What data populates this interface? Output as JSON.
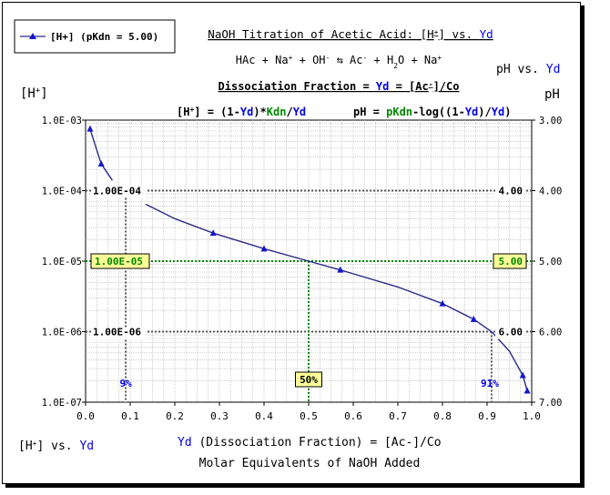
{
  "header": {
    "title_prefix": "NaOH Titration of Acetic Acid: [H",
    "title_sup": "+",
    "title_mid": "] vs. ",
    "title_var": "Yd",
    "reaction": {
      "p1": "HAc + Na",
      "s1": "+",
      "p2": " + OH",
      "s2": "-",
      "p3": " ⇆ Ac",
      "s3": "-",
      "p4": " + H",
      "sub4": "2",
      "p5": "O + Na",
      "s5": "+"
    },
    "dissoc_prefix": "Dissociation Fraction = ",
    "dissoc_var": "Yd",
    "dissoc_mid": " = [Ac",
    "dissoc_sup": "-",
    "dissoc_end": "]/Co",
    "formula_h": {
      "a": "[H",
      "sup": "+",
      "b": "] = (1-",
      "yd1": "Yd",
      "c": ")*",
      "kdn": "Kdn",
      "d": "/",
      "yd2": "Yd"
    },
    "formula_ph": {
      "a": "pH = ",
      "pk": "pKdn",
      "b": "-log((1-",
      "yd1": "Yd",
      "c": ")/",
      "yd2": "Yd",
      "d": ")"
    },
    "right_title_a": "pH vs. ",
    "right_title_b": "Yd"
  },
  "legend": {
    "label": "[H+] (pKdn = 5.00)"
  },
  "axes": {
    "y_left_label_a": "[H",
    "y_left_label_sup": "+",
    "y_left_label_b": "]",
    "y_right_label": "pH",
    "x_label_var": "Yd",
    "x_label_rest": " (Dissociation Fraction) = [Ac-]/Co",
    "x_label_2": "Molar Equivalents of NaOH Added",
    "bottom_left_a": "[H",
    "bottom_left_sup": "+",
    "bottom_left_b": "] vs. ",
    "bottom_left_var": "Yd"
  },
  "colors": {
    "series": "#2a2a8a",
    "marker": "#1515cc",
    "green": "#008800",
    "blue_text": "#0000ee",
    "box_fill": "#ffff99",
    "grid": "#b0b0b0"
  },
  "chart_data": {
    "type": "line",
    "series": [
      {
        "name": "[H+] (pKdn = 5.00)",
        "x": [
          0.01,
          0.035,
          0.06,
          0.085,
          0.135,
          0.2,
          0.286,
          0.4,
          0.5,
          0.571,
          0.7,
          0.8,
          0.87,
          0.91,
          0.95,
          0.98,
          0.99
        ],
        "y": [
          0.00075,
          0.00024,
          0.00014,
          0.00011,
          6.4e-05,
          4e-05,
          2.5e-05,
          1.5e-05,
          1e-05,
          7.5e-06,
          4.3e-06,
          2.5e-06,
          1.5e-06,
          1e-06,
          5.3e-07,
          2.4e-07,
          1.45e-07
        ],
        "markers_x": [
          0.01,
          0.035,
          0.286,
          0.4,
          0.571,
          0.8,
          0.87,
          0.98,
          0.99
        ]
      }
    ],
    "xlim": [
      0,
      1
    ],
    "x_ticks": [
      "0.0",
      "0.1",
      "0.2",
      "0.3",
      "0.4",
      "0.5",
      "0.6",
      "0.7",
      "0.8",
      "0.9",
      "1.0"
    ],
    "ylim_log": [
      1e-07,
      0.001
    ],
    "y_left_ticks": [
      "1.0E-03",
      "1.0E-04",
      "1.0E-05",
      "1.0E-06",
      "1.0E-07"
    ],
    "y_right_ticks": [
      "3.00",
      "4.00",
      "5.00",
      "6.00",
      "7.00"
    ],
    "grid": true,
    "legend_position": "top-left",
    "annotations": {
      "h_line_1e4": {
        "y": 0.0001,
        "left": "1.00E-04",
        "right": "4.00"
      },
      "h_line_1e5": {
        "y": 1e-05,
        "left": "1.00E-05",
        "right": "5.00"
      },
      "h_line_1e6": {
        "y": 1e-06,
        "left": "1.00E-06",
        "right": "6.00"
      },
      "v_line_9": {
        "x": 0.09,
        "label": "9%"
      },
      "v_line_50": {
        "x": 0.5,
        "label": "50%"
      },
      "v_line_91": {
        "x": 0.91,
        "label": "91%"
      }
    }
  }
}
